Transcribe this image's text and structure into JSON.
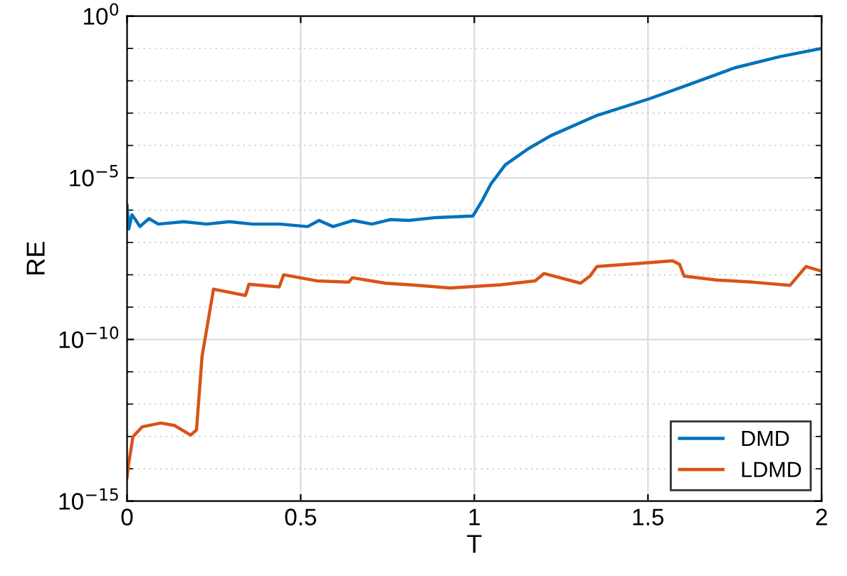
{
  "chart_data": {
    "type": "line",
    "xlabel": "T",
    "ylabel": "RE",
    "log": "y",
    "grid": true,
    "legend": "bottom right",
    "line_style": "solid",
    "marker": "none",
    "xlim": [
      0,
      2
    ],
    "xticks": [
      0,
      0.5,
      1,
      1.5,
      2
    ],
    "ylim": [
      1e-15,
      1
    ],
    "yticks": [
      {
        "value": 1e-15,
        "label": "10$^{−15}$"
      },
      {
        "value": 1e-10,
        "label": "10$^{−10}$"
      },
      {
        "value": 1e-05,
        "label": "10$^{−5}$"
      },
      {
        "value": 1,
        "label": "10$^{0}$"
      }
    ],
    "series": [
      {
        "name": "DMD",
        "color": "#0072bd",
        "x": [
          0,
          0.005,
          0.014,
          0.024,
          0.037,
          0.063,
          0.09,
          0.163,
          0.229,
          0.295,
          0.361,
          0.44,
          0.52,
          0.553,
          0.593,
          0.652,
          0.705,
          0.758,
          0.811,
          0.89,
          0.996,
          1.023,
          1.048,
          1.089,
          1.155,
          1.22,
          1.353,
          1.505,
          1.617,
          1.749,
          1.88,
          2.0
        ],
        "values": [
          1.4e-06,
          2.6e-07,
          7.2e-07,
          5.1e-07,
          3.1e-07,
          5.5e-07,
          3.7e-07,
          4.4e-07,
          3.7e-07,
          4.4e-07,
          3.7e-07,
          3.7e-07,
          3.1e-07,
          4.8e-07,
          3.1e-07,
          4.8e-07,
          3.7e-07,
          5.1e-07,
          4.8e-07,
          5.9e-07,
          6.6e-07,
          2e-06,
          6.5e-06,
          2.5e-05,
          7.9e-05,
          0.0002,
          0.00085,
          0.0028,
          0.0076,
          0.025,
          0.056,
          0.1
        ]
      },
      {
        "name": "LDMD",
        "color": "#d95319",
        "x": [
          0,
          0.004,
          0.017,
          0.044,
          0.097,
          0.136,
          0.183,
          0.2,
          0.216,
          0.249,
          0.341,
          0.351,
          0.438,
          0.451,
          0.546,
          0.638,
          0.649,
          0.744,
          0.837,
          0.93,
          1.075,
          1.175,
          1.201,
          1.306,
          1.333,
          1.353,
          1.485,
          1.571,
          1.591,
          1.604,
          1.697,
          1.803,
          1.909,
          1.955,
          2.0
        ],
        "values": [
          5.4e-15,
          1.3e-14,
          9.8e-14,
          2e-13,
          2.6e-13,
          2.2e-13,
          1.1e-13,
          1.6e-13,
          3e-11,
          3.6e-09,
          2.3e-09,
          5.1e-09,
          4.2e-09,
          1e-08,
          6.5e-09,
          5.9e-09,
          8.1e-09,
          5.5e-09,
          4.7e-09,
          3.9e-09,
          4.9e-09,
          6.5e-09,
          1.1e-08,
          5.5e-09,
          9.1e-09,
          1.8e-08,
          2.3e-08,
          2.7e-08,
          2.1e-08,
          9.1e-09,
          6.9e-09,
          5.9e-09,
          4.7e-09,
          1.8e-08,
          1.3e-08
        ]
      }
    ]
  }
}
